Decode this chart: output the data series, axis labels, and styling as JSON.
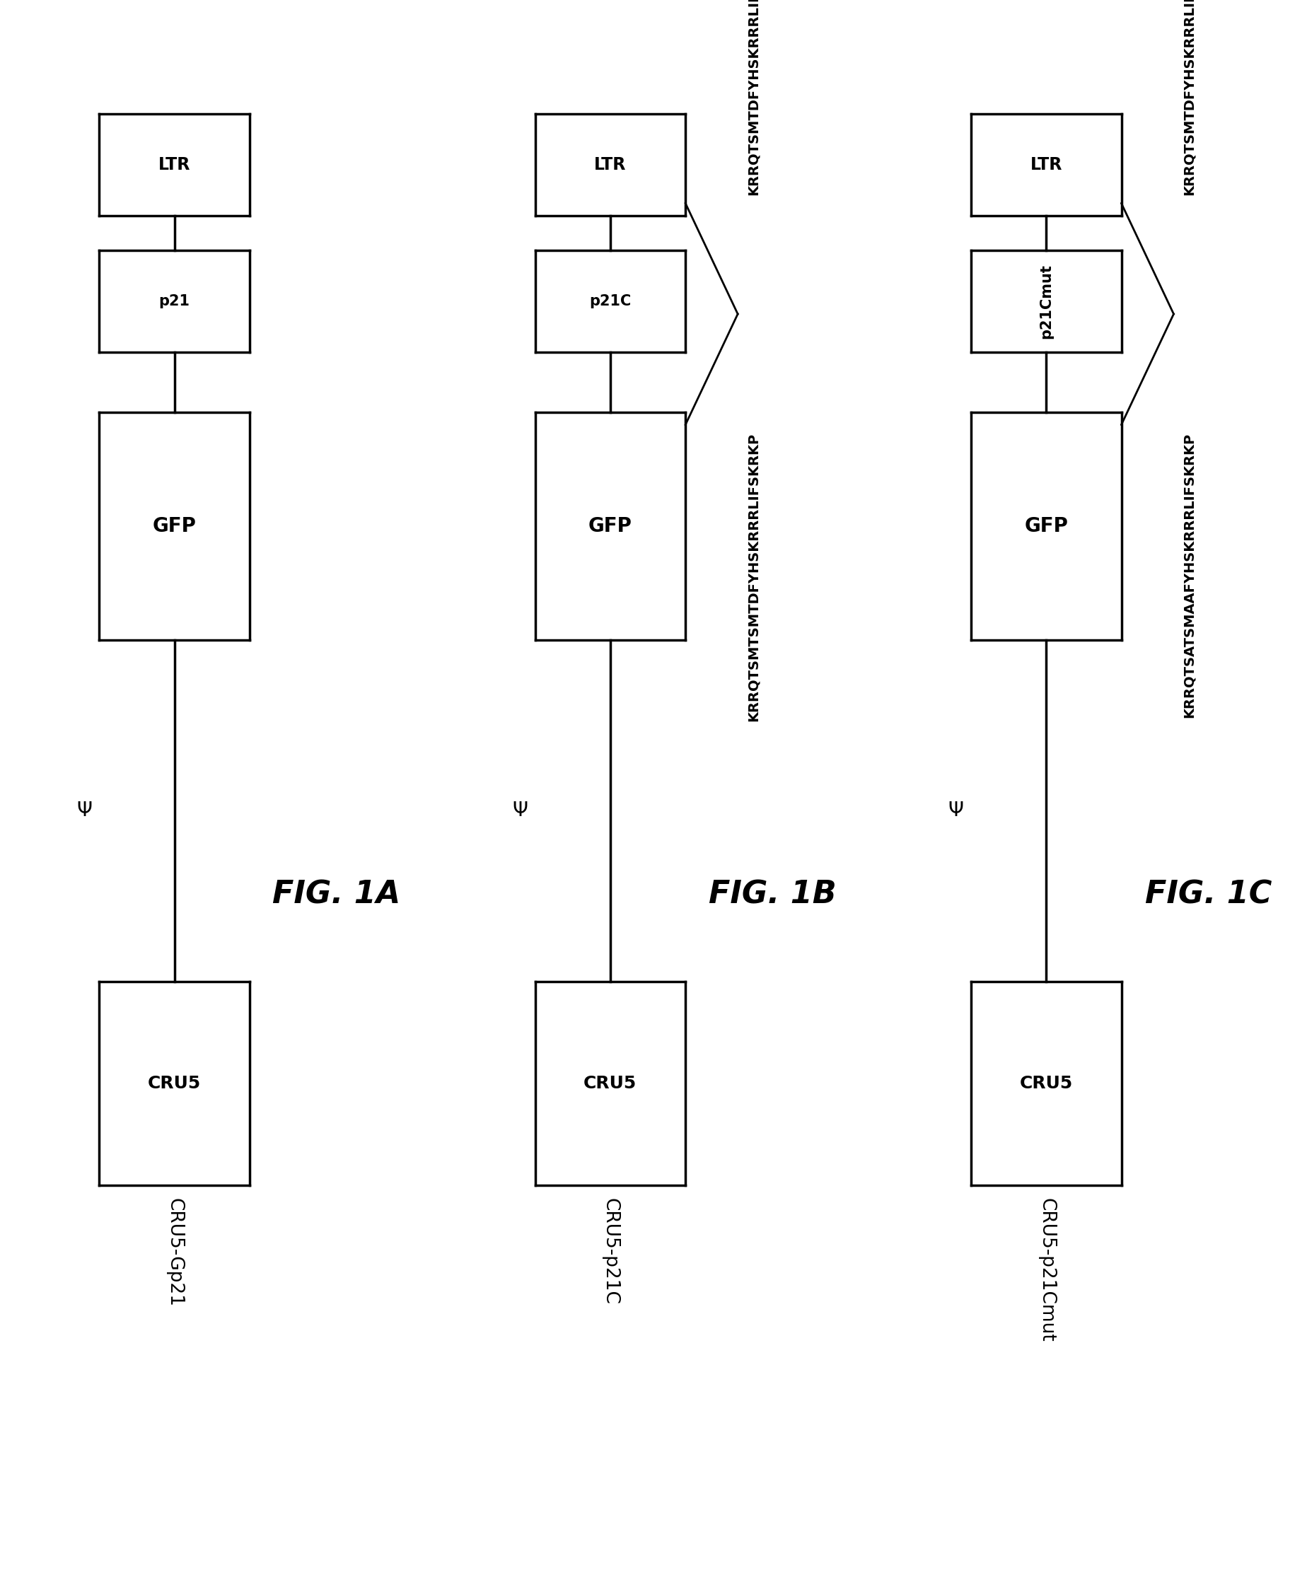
{
  "background": "#ffffff",
  "panels": [
    {
      "id": "A",
      "fig_label": "FIG. 1A",
      "construct_label": "CRU5-Gp21",
      "p21_label": "p21",
      "has_annotation": false,
      "ann_top": "",
      "ann_bot": ""
    },
    {
      "id": "B",
      "fig_label": "FIG. 1B",
      "construct_label": "CRU5-p21C",
      "p21_label": "p21C",
      "has_annotation": true,
      "ann_top": "KRRQTSMTDFYHSKRRRLIFSKRKP",
      "ann_bot": "KRRQTSMTSMTDFYHSKRRRLIFSKRKP"
    },
    {
      "id": "C",
      "fig_label": "FIG. 1C",
      "construct_label": "CRU5-p21Cmut",
      "p21_label": "p21Cmut",
      "has_annotation": true,
      "ann_top": "KRRQTSMTDFYHSKRRRLIFSKRKP",
      "ann_bot": "KRRQTSATSMAAFYHSKRRRLIFSKRKP"
    }
  ]
}
